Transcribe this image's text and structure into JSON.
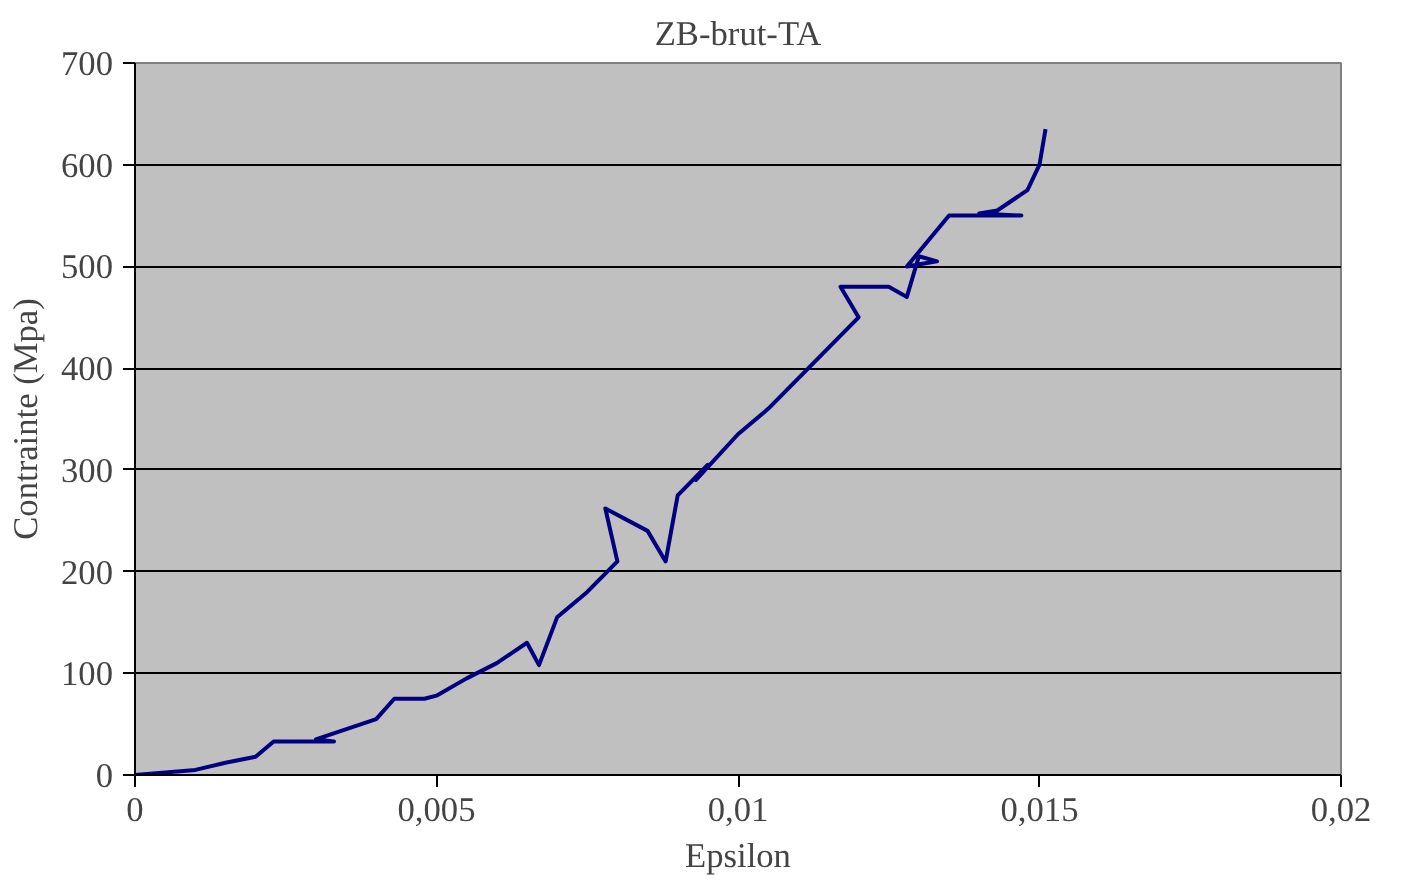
{
  "chart_data": {
    "type": "line",
    "title": "ZB-brut-TA",
    "xlabel": "Epsilon",
    "ylabel": "Contrainte (Mpa)",
    "xlim": [
      0,
      0.02
    ],
    "ylim": [
      0,
      700
    ],
    "xticks": [
      {
        "value": 0,
        "label": "0"
      },
      {
        "value": 0.005,
        "label": "0,005"
      },
      {
        "value": 0.01,
        "label": "0,01"
      },
      {
        "value": 0.015,
        "label": "0,015"
      },
      {
        "value": 0.02,
        "label": "0,02"
      }
    ],
    "yticks": [
      0,
      100,
      200,
      300,
      400,
      500,
      600,
      700
    ],
    "grid": "y",
    "marker": "none",
    "line_style": "solid",
    "series": [
      {
        "color": "#000080",
        "x": [
          0,
          0.001,
          0.0015,
          0.002,
          0.0023,
          0.0033,
          0.003,
          0.004,
          0.0043,
          0.0048,
          0.005,
          0.0055,
          0.006,
          0.0065,
          0.0067,
          0.007,
          0.0075,
          0.008,
          0.0078,
          0.0085,
          0.0088,
          0.009,
          0.0095,
          0.0093,
          0.01,
          0.0105,
          0.011,
          0.0115,
          0.012,
          0.0117,
          0.0125,
          0.0128,
          0.013,
          0.0133,
          0.0128,
          0.0135,
          0.0147,
          0.014,
          0.0143,
          0.0148,
          0.015,
          0.0151
        ],
        "values": [
          0,
          5,
          12,
          18,
          33,
          33,
          35,
          55,
          75,
          75,
          78,
          95,
          110,
          130,
          108,
          155,
          180,
          210,
          262,
          240,
          210,
          275,
          305,
          290,
          335,
          360,
          390,
          420,
          450,
          480,
          480,
          470,
          510,
          505,
          500,
          550,
          550,
          552,
          555,
          575,
          600,
          635
        ]
      }
    ]
  }
}
